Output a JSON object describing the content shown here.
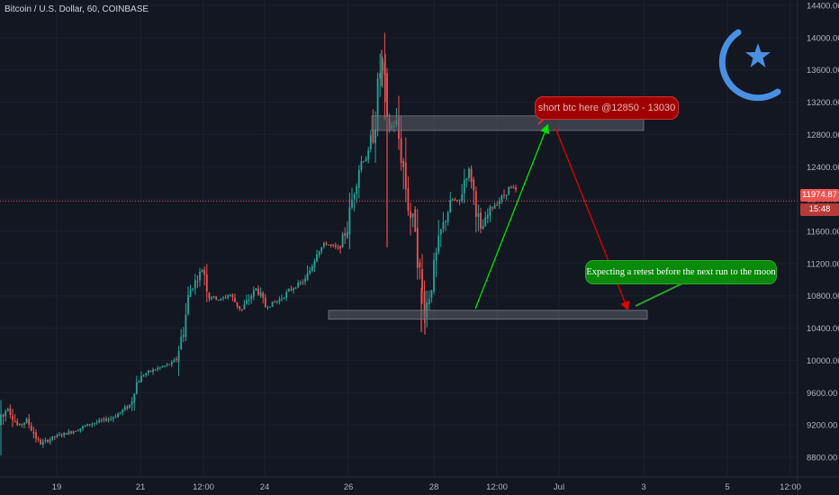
{
  "header": {
    "symbol_title": "Bitcoin / U.S. Dollar, 60, COINBASE"
  },
  "colors": {
    "background": "#131722",
    "up": "#26a69a",
    "down": "#ef5350",
    "current_price": "#ef5350",
    "zone": "#5d606b",
    "logo": "#4a90e2",
    "arrow_up": "#00e600",
    "arrow_down": "#e60000"
  },
  "logo": {
    "icon": "moon-star-icon"
  },
  "chart_data": {
    "type": "candlestick",
    "title": "Bitcoin / U.S. Dollar, 60, COINBASE",
    "ylim": [
      8500,
      14500
    ],
    "y_ticks": [
      "14400.00",
      "14000.00",
      "13600.00",
      "13200.00",
      "12800.00",
      "12400.00",
      "12000.00",
      "11600.00",
      "11200.00",
      "10800.00",
      "10400.00",
      "10000.00",
      "9600.00",
      "9200.00",
      "8800.00"
    ],
    "x_ticks": [
      "19",
      "21",
      "12:00",
      "24",
      "26",
      "28",
      "12:00",
      "Jul",
      "3",
      "5",
      "12:00"
    ],
    "current_price": {
      "value": "11974.87",
      "countdown": "15:48"
    },
    "price_path": [
      [
        0,
        9200
      ],
      [
        8,
        9430
      ],
      [
        20,
        9180
      ],
      [
        30,
        9260
      ],
      [
        44,
        8960
      ],
      [
        60,
        9050
      ],
      [
        80,
        9120
      ],
      [
        100,
        9210
      ],
      [
        125,
        9290
      ],
      [
        145,
        9450
      ],
      [
        150,
        9700
      ],
      [
        160,
        9830
      ],
      [
        175,
        9900
      ],
      [
        195,
        9980
      ],
      [
        205,
        10450
      ],
      [
        210,
        10850
      ],
      [
        218,
        11000
      ],
      [
        226,
        11150
      ],
      [
        232,
        10800
      ],
      [
        245,
        10750
      ],
      [
        255,
        10820
      ],
      [
        268,
        10620
      ],
      [
        285,
        10900
      ],
      [
        295,
        10660
      ],
      [
        310,
        10750
      ],
      [
        325,
        10900
      ],
      [
        340,
        11000
      ],
      [
        352,
        11350
      ],
      [
        362,
        11450
      ],
      [
        376,
        11380
      ],
      [
        386,
        11650
      ],
      [
        392,
        12050
      ],
      [
        400,
        12450
      ],
      [
        410,
        12550
      ],
      [
        418,
        13100
      ],
      [
        424,
        13800
      ],
      [
        430,
        12850
      ],
      [
        440,
        12950
      ],
      [
        448,
        12400
      ],
      [
        455,
        11800
      ],
      [
        462,
        11700
      ],
      [
        466,
        11050
      ],
      [
        472,
        10600
      ],
      [
        478,
        10900
      ],
      [
        484,
        11250
      ],
      [
        490,
        11600
      ],
      [
        496,
        11800
      ],
      [
        502,
        12000
      ],
      [
        510,
        11950
      ],
      [
        516,
        12250
      ],
      [
        522,
        12380
      ],
      [
        528,
        11950
      ],
      [
        534,
        11600
      ],
      [
        540,
        11750
      ],
      [
        546,
        11900
      ],
      [
        552,
        11950
      ],
      [
        560,
        12050
      ],
      [
        566,
        12150
      ],
      [
        574,
        12100
      ]
    ],
    "zones": [
      {
        "name": "resistance",
        "from": 12850,
        "to": 13030,
        "x_start": "25 Jun 00:00",
        "x_end": "3 Jul"
      },
      {
        "name": "support",
        "from": 10510,
        "to": 10620,
        "x_start": "25 Jun 00:00",
        "x_end": "3 Jul"
      }
    ],
    "annotations": {
      "short": "short btc here @12850 - 13030",
      "retest": "Expecting a retest before the next run to the moon"
    }
  }
}
